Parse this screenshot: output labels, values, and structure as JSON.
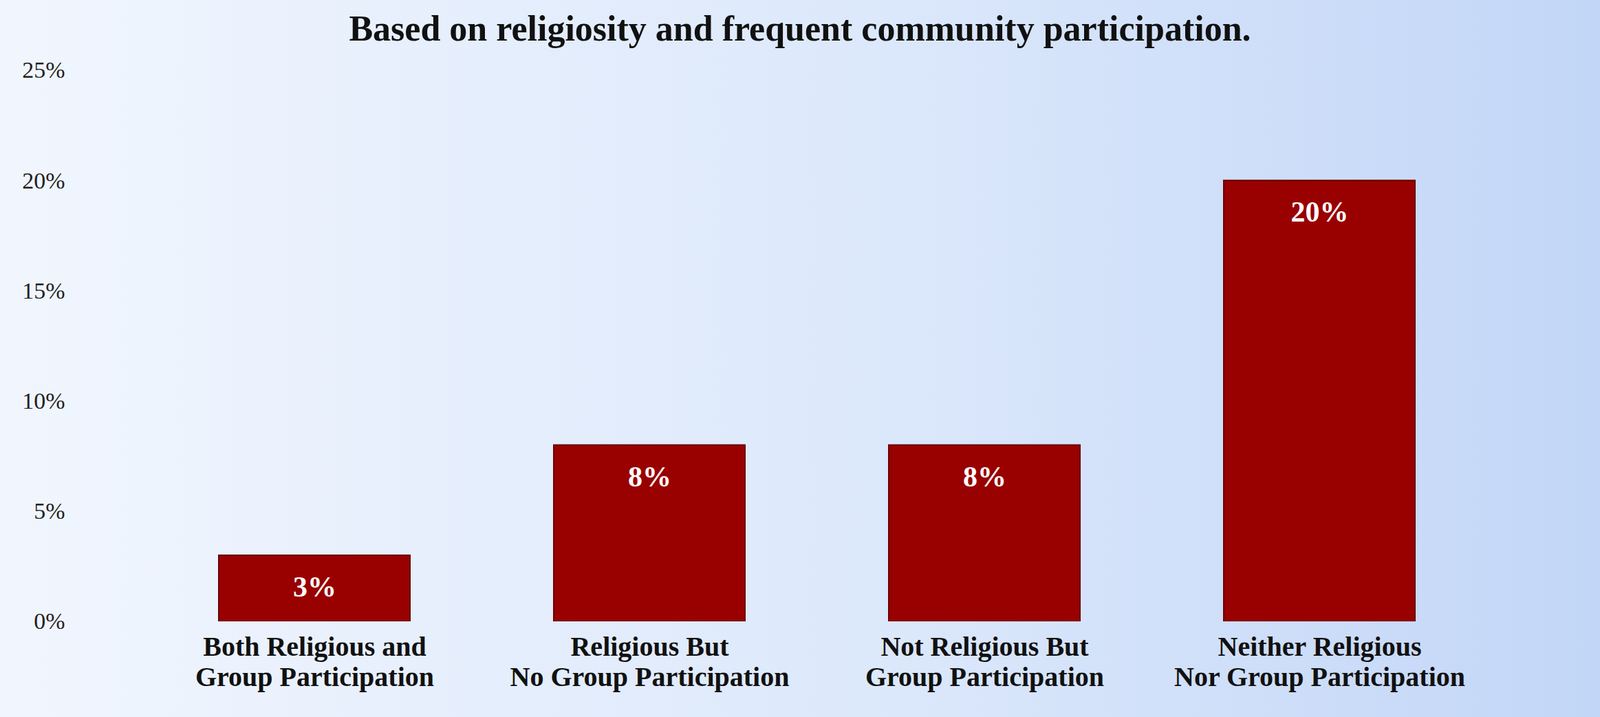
{
  "chart_data": {
    "type": "bar",
    "title": "Based on religiosity and frequent community participation.",
    "categories": [
      "Both Religious and\nGroup Participation",
      "Religious But\nNo Group Participation",
      "Not Religious But\nGroup Participation",
      "Neither Religious\nNor Group Participation"
    ],
    "values": [
      3,
      8,
      8,
      20
    ],
    "value_labels": [
      "3%",
      "8%",
      "8%",
      "20%"
    ],
    "color": "#990000",
    "ylim": [
      0,
      25
    ],
    "yticks": [
      {
        "value": 0,
        "label": "0%"
      },
      {
        "value": 5,
        "label": "5%"
      },
      {
        "value": 10,
        "label": "10%"
      },
      {
        "value": 15,
        "label": "15%"
      },
      {
        "value": 20,
        "label": "20%"
      },
      {
        "value": 25,
        "label": "25%"
      }
    ],
    "grid": false,
    "data_labels": true
  }
}
